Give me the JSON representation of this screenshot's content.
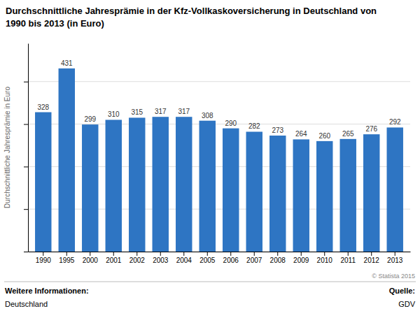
{
  "chart_data": {
    "type": "bar",
    "title": "Durchschnittliche Jahresprämie in der Kfz-Vollkaskoversicherung in Deutschland von\n1990 bis 2013 (in Euro)",
    "y_label": "Durchschnittliche Jahresprämie in Euro",
    "categories": [
      "1990",
      "1995",
      "2000",
      "2001",
      "2002",
      "2003",
      "2004",
      "2005",
      "2006",
      "2007",
      "2008",
      "2009",
      "2010",
      "2011",
      "2012",
      "2013"
    ],
    "values": [
      328,
      431,
      299,
      310,
      315,
      317,
      317,
      308,
      290,
      282,
      273,
      264,
      260,
      265,
      276,
      292
    ],
    "color": "#2e75c3",
    "ylim": [
      0,
      490
    ],
    "yticks": [
      0,
      100,
      200,
      300,
      400
    ],
    "grid": true,
    "data_labels": true,
    "tick_labels": "x",
    "annotations": [
      "© Statista 2015",
      "Weitere Informationen:",
      "Deutschland",
      "Quelle:",
      "GDV"
    ]
  }
}
